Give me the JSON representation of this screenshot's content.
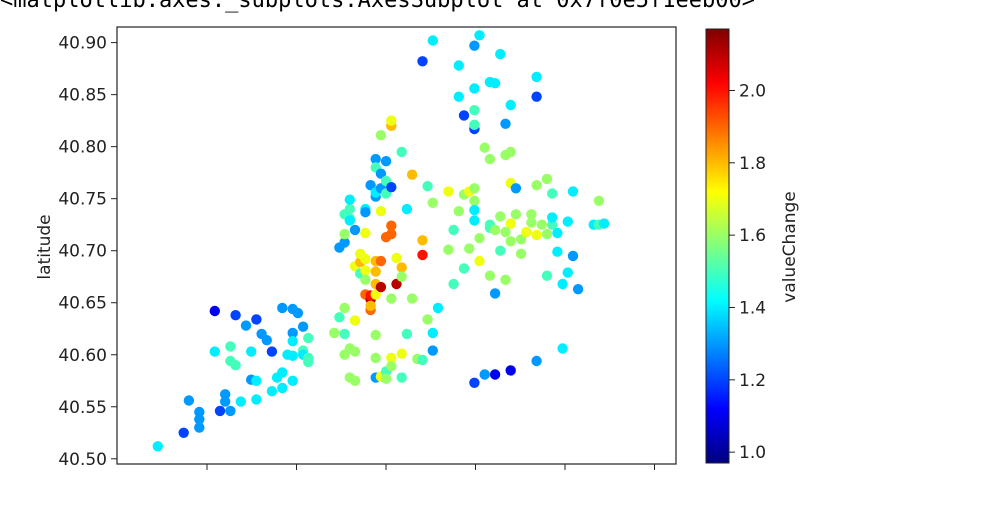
{
  "output_header": "<matplotlib.axes._subplots.AxesSubplot at 0x7f0e5f1eeb00>",
  "chart_data": {
    "type": "scatter",
    "ylabel": "latitude",
    "xlabel": "",
    "colorbar_label": "valueChange",
    "colormap": "jet",
    "ylim": [
      40.495,
      40.915
    ],
    "yticks": [
      "40.50",
      "40.55",
      "40.60",
      "40.65",
      "40.70",
      "40.75",
      "40.80",
      "40.85",
      "40.90"
    ],
    "color_range": [
      0.97,
      2.17
    ],
    "colorbar_ticks": [
      "1.0",
      "1.2",
      "1.4",
      "1.6",
      "1.8",
      "2.0"
    ],
    "x_units_note": "x tick marks shown without labels; x values expressed on an arbitrary 0-100 longitude index",
    "xlim": [
      0,
      100
    ],
    "points": [
      [
        4,
        40.512,
        1.4
      ],
      [
        9,
        40.525,
        1.2
      ],
      [
        10,
        40.556,
        1.3
      ],
      [
        12,
        40.545,
        1.3
      ],
      [
        12,
        40.53,
        1.3
      ],
      [
        12,
        40.538,
        1.3
      ],
      [
        15,
        40.603,
        1.4
      ],
      [
        15,
        40.642,
        1.1
      ],
      [
        16,
        40.546,
        1.2
      ],
      [
        17,
        40.555,
        1.3
      ],
      [
        17,
        40.562,
        1.3
      ],
      [
        18,
        40.546,
        1.3
      ],
      [
        18,
        40.608,
        1.5
      ],
      [
        18,
        40.594,
        1.5
      ],
      [
        19,
        40.59,
        1.5
      ],
      [
        19,
        40.638,
        1.2
      ],
      [
        20,
        40.555,
        1.4
      ],
      [
        21,
        40.628,
        1.3
      ],
      [
        22,
        40.603,
        1.4
      ],
      [
        22,
        40.576,
        1.3
      ],
      [
        23,
        40.557,
        1.4
      ],
      [
        23,
        40.634,
        1.2
      ],
      [
        23,
        40.575,
        1.4
      ],
      [
        24,
        40.62,
        1.3
      ],
      [
        25,
        40.614,
        1.3
      ],
      [
        26,
        40.603,
        1.2
      ],
      [
        26,
        40.565,
        1.4
      ],
      [
        27,
        40.578,
        1.4
      ],
      [
        28,
        40.645,
        1.3
      ],
      [
        28,
        40.583,
        1.4
      ],
      [
        28,
        40.568,
        1.4
      ],
      [
        29,
        40.6,
        1.4
      ],
      [
        30,
        40.644,
        1.3
      ],
      [
        30,
        40.621,
        1.3
      ],
      [
        30,
        40.613,
        1.4
      ],
      [
        30,
        40.599,
        1.4
      ],
      [
        30,
        40.575,
        1.4
      ],
      [
        31,
        40.64,
        1.3
      ],
      [
        32,
        40.604,
        1.5
      ],
      [
        32,
        40.627,
        1.3
      ],
      [
        32,
        40.6,
        1.4
      ],
      [
        33,
        40.616,
        1.5
      ],
      [
        33,
        40.597,
        1.5
      ],
      [
        33,
        40.593,
        1.5
      ],
      [
        38,
        40.621,
        1.6
      ],
      [
        39,
        40.636,
        1.5
      ],
      [
        40,
        40.645,
        1.6
      ],
      [
        40,
        40.6,
        1.6
      ],
      [
        40,
        40.62,
        1.5
      ],
      [
        41,
        40.606,
        1.6
      ],
      [
        41,
        40.578,
        1.6
      ],
      [
        42,
        40.633,
        1.7
      ],
      [
        42,
        40.603,
        1.6
      ],
      [
        42,
        40.575,
        1.6
      ],
      [
        39,
        40.703,
        1.3
      ],
      [
        40,
        40.708,
        1.3
      ],
      [
        40,
        40.716,
        1.6
      ],
      [
        40,
        40.735,
        1.5
      ],
      [
        41,
        40.74,
        1.5
      ],
      [
        41,
        40.749,
        1.4
      ],
      [
        41,
        40.731,
        1.5
      ],
      [
        41,
        40.729,
        1.4
      ],
      [
        42,
        40.72,
        1.3
      ],
      [
        42,
        40.685,
        1.7
      ],
      [
        43,
        40.689,
        1.8
      ],
      [
        43,
        40.678,
        1.5
      ],
      [
        43,
        40.697,
        1.7
      ],
      [
        44,
        40.717,
        1.7
      ],
      [
        44,
        40.74,
        1.4
      ],
      [
        44,
        40.737,
        1.3
      ],
      [
        44,
        40.692,
        1.7
      ],
      [
        44,
        40.681,
        1.7
      ],
      [
        44,
        40.672,
        1.6
      ],
      [
        44,
        40.658,
        1.9
      ],
      [
        45,
        40.653,
        2.1
      ],
      [
        45,
        40.657,
        2.0
      ],
      [
        45,
        40.643,
        1.9
      ],
      [
        45,
        40.647,
        1.8
      ],
      [
        45,
        40.763,
        1.3
      ],
      [
        46,
        40.752,
        1.3
      ],
      [
        46,
        40.788,
        1.3
      ],
      [
        46,
        40.756,
        1.4
      ],
      [
        46,
        40.78,
        1.5
      ],
      [
        46,
        40.69,
        1.8
      ],
      [
        46,
        40.68,
        1.8
      ],
      [
        46,
        40.668,
        1.8
      ],
      [
        46,
        40.658,
        1.7
      ],
      [
        46,
        40.619,
        1.6
      ],
      [
        46,
        40.578,
        1.3
      ],
      [
        46,
        40.597,
        1.6
      ],
      [
        47,
        40.774,
        1.3
      ],
      [
        47,
        40.76,
        1.3
      ],
      [
        47,
        40.738,
        1.7
      ],
      [
        47,
        40.811,
        1.6
      ],
      [
        47,
        40.69,
        1.9
      ],
      [
        47,
        40.665,
        2.1
      ],
      [
        47,
        40.579,
        1.7
      ],
      [
        48,
        40.713,
        1.9
      ],
      [
        48,
        40.755,
        1.5
      ],
      [
        48,
        40.786,
        1.3
      ],
      [
        48,
        40.767,
        1.5
      ],
      [
        48,
        40.584,
        1.5
      ],
      [
        48,
        40.577,
        1.6
      ],
      [
        49,
        40.82,
        1.8
      ],
      [
        49,
        40.825,
        1.7
      ],
      [
        49,
        40.716,
        1.9
      ],
      [
        49,
        40.724,
        1.9
      ],
      [
        49,
        40.761,
        1.2
      ],
      [
        49,
        40.654,
        1.6
      ],
      [
        49,
        40.597,
        1.7
      ],
      [
        49,
        40.589,
        1.6
      ],
      [
        50,
        40.693,
        1.7
      ],
      [
        50,
        40.668,
        2.1
      ],
      [
        51,
        40.795,
        1.5
      ],
      [
        51,
        40.684,
        1.8
      ],
      [
        51,
        40.675,
        1.6
      ],
      [
        51,
        40.601,
        1.7
      ],
      [
        51,
        40.578,
        1.5
      ],
      [
        52,
        40.74,
        1.4
      ],
      [
        52,
        40.62,
        1.5
      ],
      [
        53,
        40.773,
        1.8
      ],
      [
        53,
        40.654,
        1.6
      ],
      [
        54,
        40.596,
        1.6
      ],
      [
        55,
        40.882,
        1.2
      ],
      [
        55,
        40.595,
        1.5
      ],
      [
        55,
        40.696,
        2.0
      ],
      [
        55,
        40.71,
        1.8
      ],
      [
        56,
        40.762,
        1.5
      ],
      [
        56,
        40.634,
        1.6
      ],
      [
        57,
        40.902,
        1.4
      ],
      [
        57,
        40.746,
        1.6
      ],
      [
        57,
        40.604,
        1.3
      ],
      [
        57,
        40.621,
        1.4
      ],
      [
        58,
        40.645,
        1.4
      ],
      [
        60,
        40.757,
        1.7
      ],
      [
        60,
        40.701,
        1.6
      ],
      [
        61,
        40.668,
        1.5
      ],
      [
        61,
        40.72,
        1.5
      ],
      [
        62,
        40.878,
        1.4
      ],
      [
        62,
        40.848,
        1.4
      ],
      [
        62,
        40.738,
        1.6
      ],
      [
        63,
        40.83,
        1.2
      ],
      [
        63,
        40.754,
        1.6
      ],
      [
        63,
        40.683,
        1.5
      ],
      [
        64,
        40.702,
        1.6
      ],
      [
        64,
        40.757,
        1.7
      ],
      [
        65,
        40.897,
        1.3
      ],
      [
        65,
        40.856,
        1.4
      ],
      [
        65,
        40.835,
        1.5
      ],
      [
        65,
        40.817,
        1.2
      ],
      [
        65,
        40.821,
        1.5
      ],
      [
        65,
        40.76,
        1.6
      ],
      [
        65,
        40.748,
        1.6
      ],
      [
        65,
        40.739,
        1.4
      ],
      [
        65,
        40.729,
        1.4
      ],
      [
        65,
        40.573,
        1.2
      ],
      [
        66,
        40.907,
        1.4
      ],
      [
        66,
        40.69,
        1.7
      ],
      [
        66,
        40.712,
        1.6
      ],
      [
        67,
        40.799,
        1.6
      ],
      [
        67,
        40.581,
        1.3
      ],
      [
        68,
        40.862,
        1.4
      ],
      [
        68,
        40.788,
        1.6
      ],
      [
        68,
        40.725,
        1.5
      ],
      [
        68,
        40.722,
        1.5
      ],
      [
        68,
        40.676,
        1.6
      ],
      [
        69,
        40.861,
        1.4
      ],
      [
        69,
        40.72,
        1.6
      ],
      [
        69,
        40.659,
        1.3
      ],
      [
        69,
        40.581,
        1.1
      ],
      [
        70,
        40.889,
        1.4
      ],
      [
        70,
        40.733,
        1.6
      ],
      [
        70,
        40.7,
        1.5
      ],
      [
        71,
        40.822,
        1.3
      ],
      [
        71,
        40.792,
        1.6
      ],
      [
        71,
        40.718,
        1.6
      ],
      [
        71,
        40.672,
        1.6
      ],
      [
        72,
        40.84,
        1.4
      ],
      [
        72,
        40.795,
        1.6
      ],
      [
        72,
        40.765,
        1.7
      ],
      [
        72,
        40.726,
        1.7
      ],
      [
        72,
        40.709,
        1.6
      ],
      [
        72,
        40.585,
        1.1
      ],
      [
        73,
        40.76,
        1.3
      ],
      [
        73,
        40.735,
        1.6
      ],
      [
        74,
        40.711,
        1.6
      ],
      [
        74,
        40.697,
        1.6
      ],
      [
        75,
        40.718,
        1.7
      ],
      [
        76,
        40.735,
        1.6
      ],
      [
        76,
        40.727,
        1.6
      ],
      [
        77,
        40.867,
        1.4
      ],
      [
        77,
        40.848,
        1.2
      ],
      [
        77,
        40.763,
        1.6
      ],
      [
        77,
        40.715,
        1.7
      ],
      [
        77,
        40.594,
        1.3
      ],
      [
        78,
        40.725,
        1.6
      ],
      [
        79,
        40.769,
        1.6
      ],
      [
        79,
        40.716,
        1.6
      ],
      [
        79,
        40.676,
        1.5
      ],
      [
        80,
        40.755,
        1.5
      ],
      [
        80,
        40.725,
        1.5
      ],
      [
        80,
        40.732,
        1.4
      ],
      [
        81,
        40.699,
        1.4
      ],
      [
        81,
        40.717,
        1.4
      ],
      [
        82,
        40.606,
        1.4
      ],
      [
        82,
        40.668,
        1.4
      ],
      [
        83,
        40.679,
        1.4
      ],
      [
        83,
        40.728,
        1.4
      ],
      [
        84,
        40.757,
        1.4
      ],
      [
        84,
        40.695,
        1.3
      ],
      [
        85,
        40.663,
        1.3
      ],
      [
        88,
        40.725,
        1.4
      ],
      [
        89,
        40.748,
        1.6
      ],
      [
        89,
        40.725,
        1.5
      ],
      [
        90,
        40.726,
        1.4
      ]
    ]
  }
}
